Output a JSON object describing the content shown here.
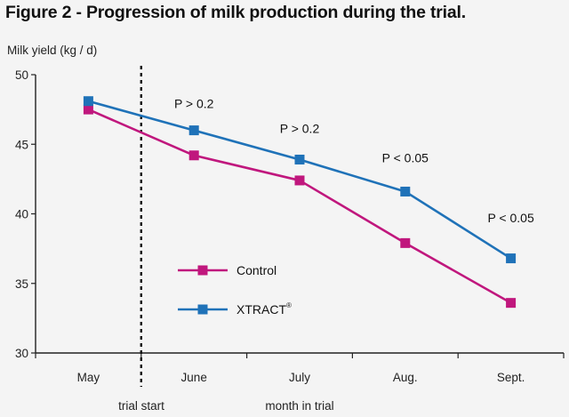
{
  "page": {
    "title": "Figure 2 - Progression of milk production during the trial."
  },
  "colors": {
    "control": "#c0177d",
    "xtract": "#1f72b8",
    "axis": "#222222",
    "trial_start_line": "#111111"
  },
  "chart_data": {
    "type": "line",
    "title": "Figure 2 - Progression of milk production during the trial.",
    "ylabel": "Milk yield (kg / d)",
    "xlabel": "month in trial",
    "categories": [
      "May",
      "June",
      "July",
      "Aug.",
      "Sept."
    ],
    "ylim": [
      30,
      50
    ],
    "yticks": [
      30,
      35,
      40,
      45,
      50
    ],
    "grid": false,
    "legend_placement": "lower-left inside",
    "series": [
      {
        "name": "Control",
        "color": "#c0177d",
        "marker": "square",
        "values": [
          47.5,
          44.2,
          42.4,
          37.9,
          33.6
        ]
      },
      {
        "name": "XTRACT",
        "superscript": "®",
        "color": "#1f72b8",
        "marker": "square",
        "values": [
          48.1,
          46.0,
          43.9,
          41.6,
          36.8
        ]
      }
    ],
    "annotations": [
      {
        "text": "P > 0.2",
        "category": "June",
        "y": 47.6
      },
      {
        "text": "P > 0.2",
        "category": "July",
        "y": 45.8
      },
      {
        "text": "P < 0.05",
        "category": "Aug.",
        "y": 43.7
      },
      {
        "text": "P < 0.05",
        "category": "Sept.",
        "y": 39.4
      }
    ],
    "vertical_marker": {
      "label": "trial start",
      "position": "between May and June"
    }
  }
}
